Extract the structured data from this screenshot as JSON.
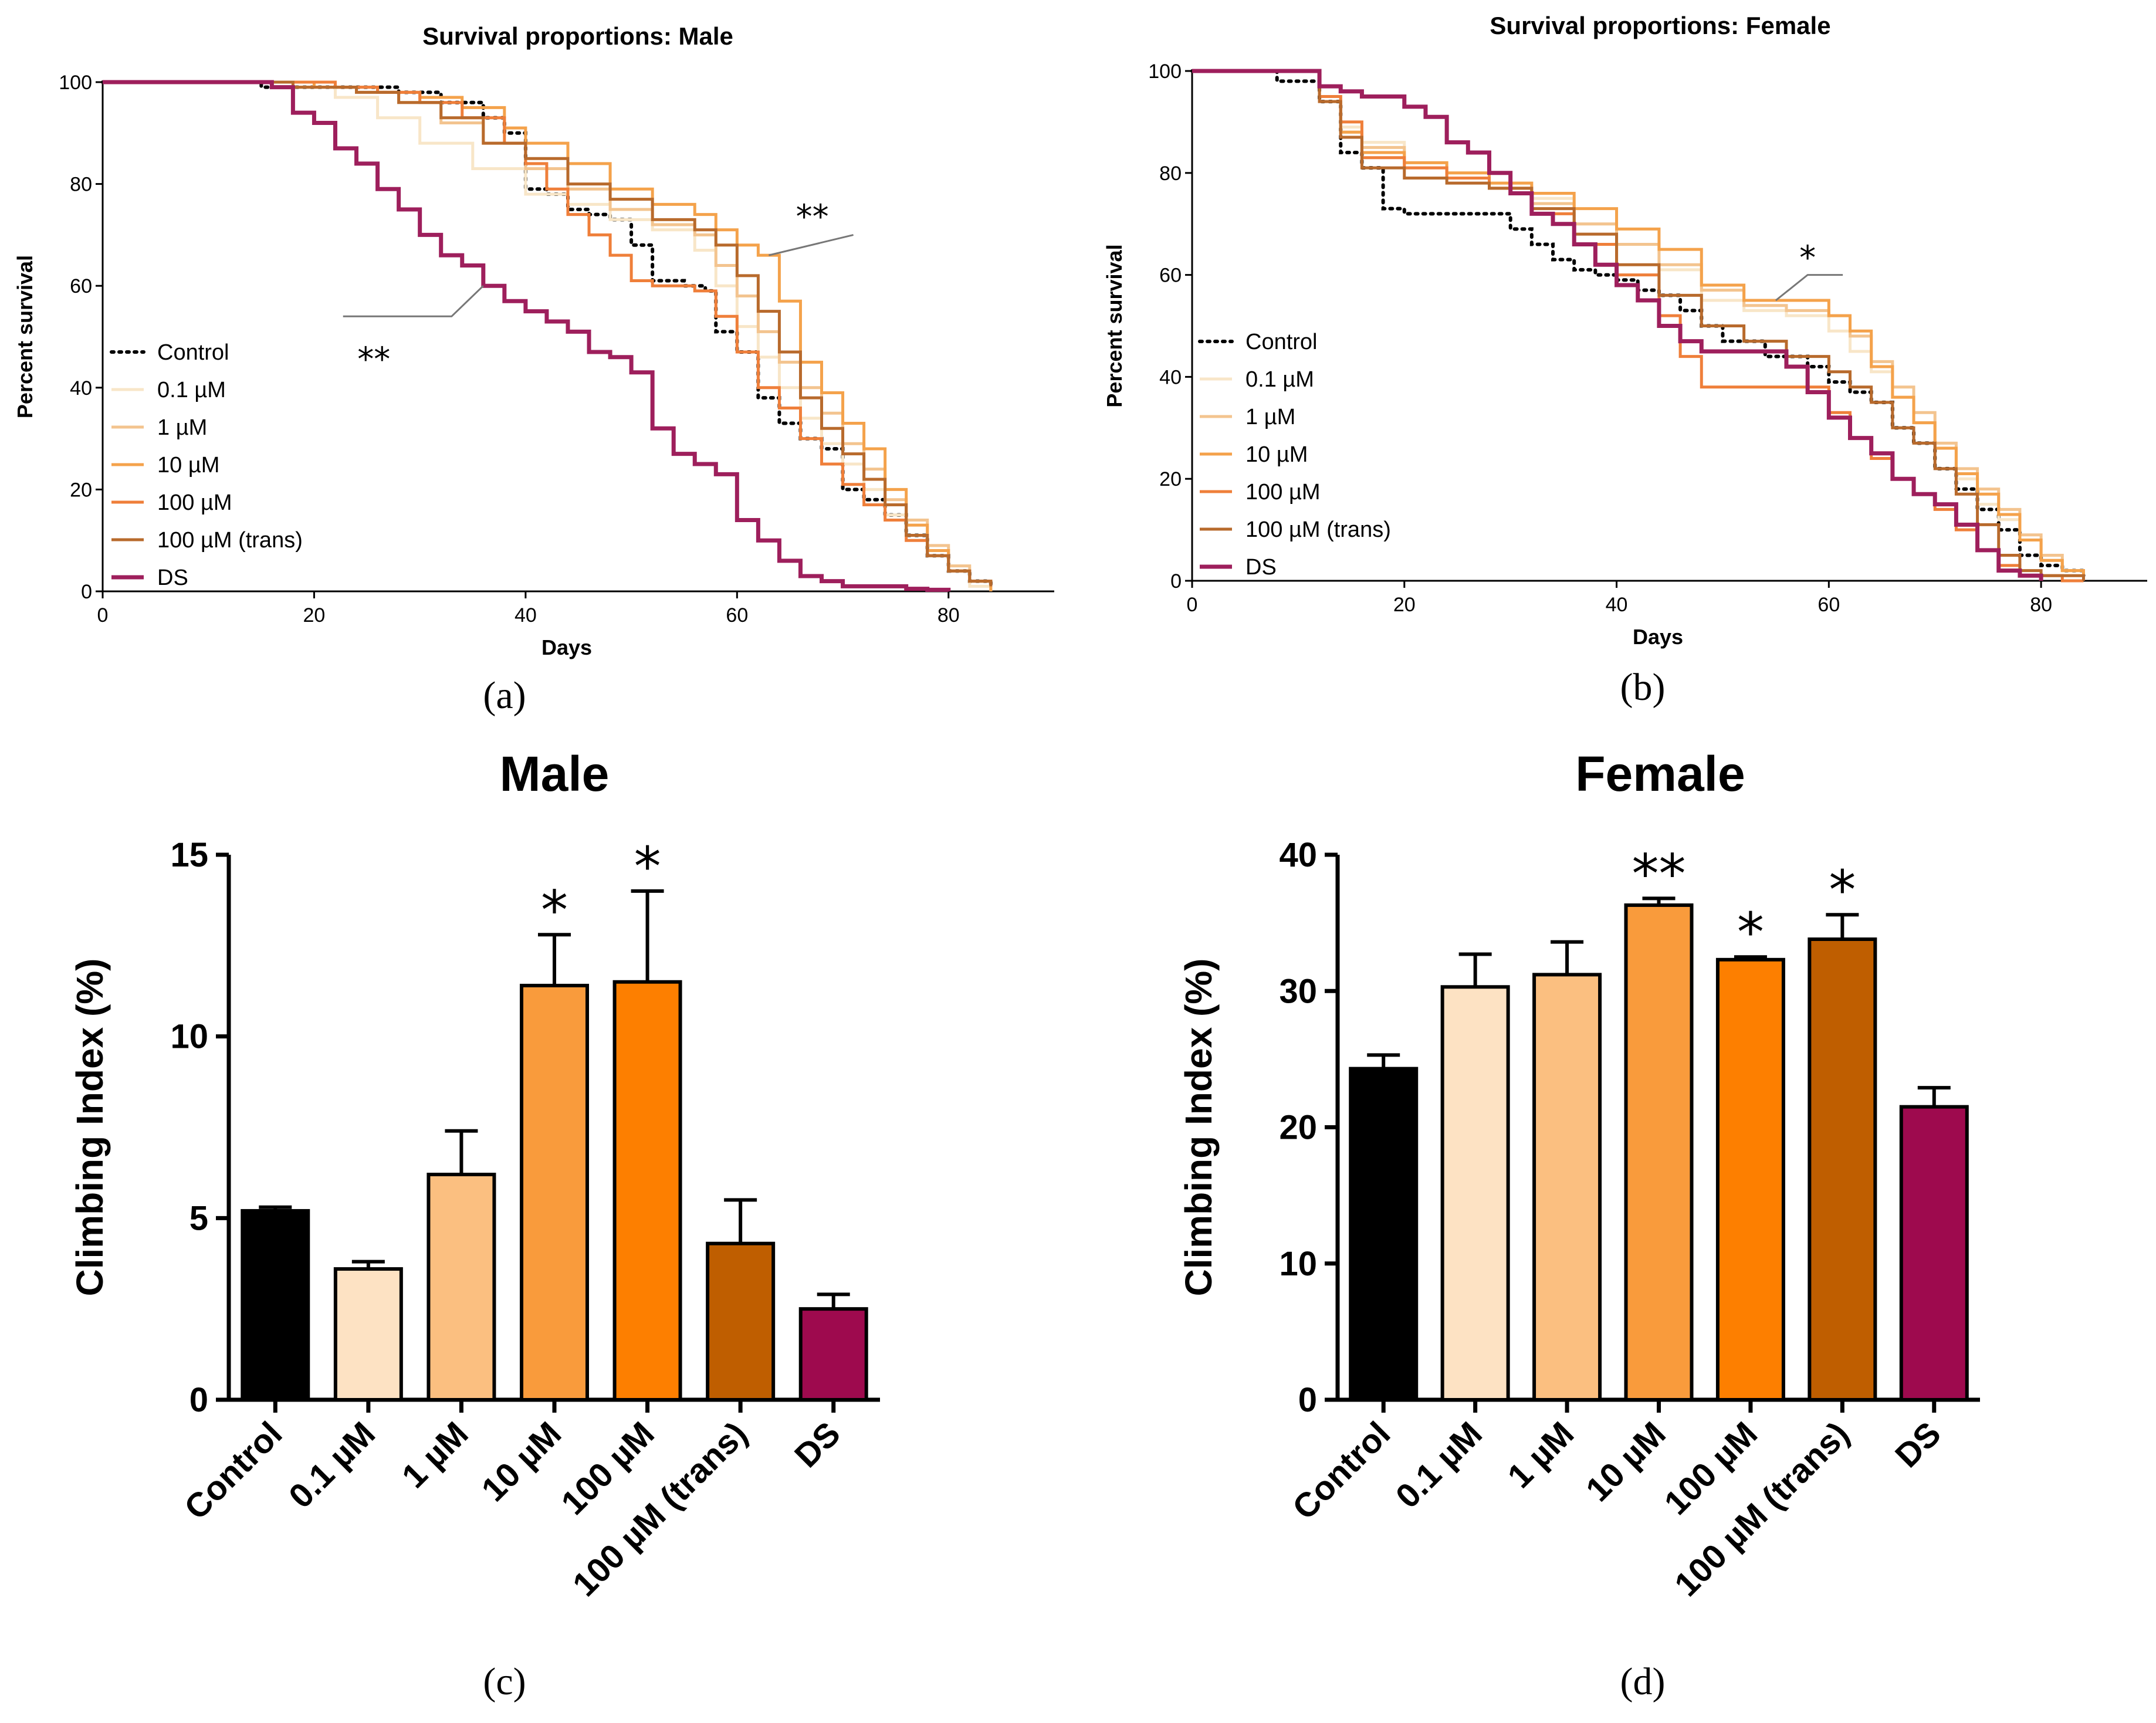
{
  "chart_data": [
    {
      "id": "a",
      "type": "line",
      "panel_label": "(a)",
      "title": "Survival proportions: Male",
      "xlabel": "Days",
      "ylabel": "Percent survival",
      "xlim": [
        0,
        90
      ],
      "ylim": [
        0,
        100
      ],
      "xticks": [
        0,
        20,
        40,
        60,
        80
      ],
      "yticks": [
        0,
        20,
        40,
        60,
        80,
        100
      ],
      "legend_position": "left",
      "annotations": [
        {
          "text": "**",
          "target": "10 µM"
        },
        {
          "text": "**",
          "target": "DS"
        }
      ],
      "series": [
        {
          "name": "Control",
          "color": "#000000",
          "style": "dotted",
          "x": [
            0,
            15,
            20,
            25,
            28,
            32,
            36,
            38,
            40,
            42,
            44,
            46,
            48,
            50,
            52,
            55,
            57,
            58,
            60,
            62,
            64,
            66,
            68,
            70,
            72,
            74,
            76,
            78,
            80,
            82,
            84
          ],
          "y": [
            100,
            99,
            99,
            99,
            98,
            96,
            93,
            90,
            79,
            78,
            75,
            74,
            73,
            68,
            61,
            60,
            59,
            51,
            47,
            38,
            33,
            30,
            28,
            20,
            18,
            15,
            11,
            7,
            4,
            2,
            1
          ]
        },
        {
          "name": "0.1 µM",
          "color": "#f8e6c8",
          "style": "solid",
          "x": [
            0,
            16,
            22,
            26,
            30,
            35,
            40,
            44,
            48,
            52,
            56,
            58,
            60,
            62,
            64,
            66,
            68,
            70,
            72,
            74,
            76,
            78,
            80,
            82,
            84
          ],
          "y": [
            100,
            99,
            97,
            93,
            88,
            83,
            78,
            76,
            73,
            71,
            67,
            60,
            52,
            46,
            40,
            34,
            29,
            25,
            20,
            15,
            11,
            7,
            4,
            1,
            0
          ]
        },
        {
          "name": "1 µM",
          "color": "#f3c48f",
          "style": "solid",
          "x": [
            0,
            16,
            24,
            28,
            32,
            36,
            40,
            44,
            48,
            52,
            56,
            58,
            60,
            62,
            64,
            66,
            68,
            70,
            72,
            74,
            76,
            78,
            80,
            82,
            84
          ],
          "y": [
            100,
            99,
            98,
            96,
            92,
            88,
            83,
            79,
            75,
            72,
            70,
            64,
            58,
            51,
            45,
            40,
            35,
            29,
            24,
            18,
            14,
            9,
            5,
            2,
            1
          ]
        },
        {
          "name": "10 µM",
          "color": "#f4a24b",
          "style": "solid",
          "x": [
            0,
            20,
            26,
            30,
            34,
            38,
            40,
            44,
            48,
            52,
            56,
            58,
            60,
            62,
            64,
            66,
            68,
            70,
            72,
            74,
            76,
            78,
            80,
            82,
            84
          ],
          "y": [
            100,
            99,
            98,
            97,
            95,
            91,
            88,
            84,
            79,
            76,
            74,
            71,
            68,
            66,
            57,
            45,
            39,
            33,
            28,
            20,
            13,
            8,
            4,
            2,
            0
          ]
        },
        {
          "name": "100 µM",
          "color": "#ef7f3a",
          "style": "solid",
          "x": [
            0,
            22,
            26,
            30,
            34,
            38,
            40,
            42,
            44,
            46,
            48,
            50,
            52,
            56,
            58,
            60,
            62,
            64,
            66,
            68,
            70,
            72,
            74,
            76,
            78,
            80,
            82,
            84
          ],
          "y": [
            100,
            99,
            98,
            96,
            93,
            88,
            84,
            79,
            74,
            70,
            66,
            61,
            60,
            59,
            54,
            47,
            40,
            36,
            30,
            25,
            21,
            17,
            14,
            10,
            7,
            4,
            2,
            1
          ]
        },
        {
          "name": "100 µM (trans)",
          "color": "#b86a2c",
          "style": "solid",
          "x": [
            0,
            18,
            24,
            28,
            32,
            36,
            40,
            44,
            48,
            52,
            56,
            58,
            60,
            62,
            64,
            66,
            68,
            70,
            72,
            74,
            76,
            78,
            80,
            82,
            84
          ],
          "y": [
            100,
            99,
            98,
            96,
            93,
            88,
            85,
            80,
            77,
            73,
            71,
            68,
            62,
            55,
            47,
            38,
            32,
            27,
            22,
            17,
            11,
            7,
            4,
            2,
            1
          ]
        },
        {
          "name": "DS",
          "color": "#9e1f5c",
          "style": "solid",
          "x": [
            0,
            16,
            18,
            20,
            22,
            24,
            26,
            28,
            30,
            32,
            34,
            36,
            38,
            40,
            42,
            44,
            46,
            48,
            50,
            52,
            54,
            56,
            58,
            60,
            62,
            64,
            66,
            68,
            70,
            72,
            74,
            76,
            78,
            80
          ],
          "y": [
            100,
            99,
            94,
            92,
            87,
            84,
            79,
            75,
            70,
            66,
            64,
            60,
            57,
            55,
            53,
            51,
            47,
            46,
            43,
            32,
            27,
            25,
            23,
            14,
            10,
            6,
            3,
            2,
            1,
            1,
            1,
            0.5,
            0.3,
            0
          ]
        }
      ]
    },
    {
      "id": "b",
      "type": "line",
      "panel_label": "(b)",
      "title": "Survival proportions: Female",
      "xlabel": "Days",
      "ylabel": "Percent survival",
      "xlim": [
        0,
        90
      ],
      "ylim": [
        0,
        100
      ],
      "xticks": [
        0,
        20,
        40,
        60,
        80
      ],
      "yticks": [
        0,
        20,
        40,
        60,
        80,
        100
      ],
      "legend_position": "left",
      "annotations": [
        {
          "text": "*",
          "target": "10 µM"
        }
      ],
      "series": [
        {
          "name": "Control",
          "color": "#000000",
          "style": "dotted",
          "x": [
            0,
            8,
            12,
            14,
            16,
            18,
            20,
            24,
            28,
            30,
            32,
            34,
            36,
            38,
            40,
            42,
            44,
            46,
            48,
            50,
            54,
            58,
            60,
            62,
            64,
            66,
            68,
            70,
            72,
            74,
            76,
            78,
            80,
            82,
            84
          ],
          "y": [
            100,
            98,
            94,
            84,
            81,
            73,
            72,
            72,
            72,
            69,
            66,
            63,
            61,
            60,
            59,
            57,
            56,
            53,
            50,
            47,
            44,
            42,
            39,
            37,
            35,
            30,
            27,
            22,
            18,
            14,
            10,
            5,
            3,
            2,
            1
          ]
        },
        {
          "name": "0.1 µM",
          "color": "#f8e6c8",
          "style": "solid",
          "x": [
            0,
            12,
            14,
            16,
            20,
            24,
            28,
            32,
            36,
            40,
            44,
            48,
            52,
            56,
            60,
            62,
            64,
            66,
            68,
            70,
            72,
            74,
            76,
            78,
            80,
            82,
            84
          ],
          "y": [
            100,
            95,
            89,
            86,
            82,
            80,
            78,
            75,
            70,
            66,
            61,
            55,
            53,
            52,
            49,
            45,
            41,
            36,
            31,
            26,
            20,
            15,
            12,
            8,
            4,
            2,
            1
          ]
        },
        {
          "name": "1 µM",
          "color": "#f3c48f",
          "style": "solid",
          "x": [
            0,
            12,
            14,
            16,
            20,
            24,
            28,
            32,
            36,
            40,
            44,
            48,
            52,
            56,
            60,
            62,
            64,
            66,
            68,
            70,
            72,
            74,
            76,
            78,
            80,
            82,
            84
          ],
          "y": [
            100,
            94,
            88,
            85,
            81,
            79,
            77,
            74,
            70,
            66,
            62,
            57,
            54,
            53,
            52,
            48,
            43,
            38,
            33,
            27,
            22,
            18,
            14,
            9,
            5,
            2,
            1
          ]
        },
        {
          "name": "10 µM",
          "color": "#f4a24b",
          "style": "solid",
          "x": [
            0,
            12,
            14,
            16,
            20,
            24,
            28,
            32,
            36,
            40,
            44,
            48,
            52,
            56,
            60,
            62,
            64,
            66,
            68,
            70,
            72,
            74,
            76,
            78,
            80,
            82,
            84
          ],
          "y": [
            100,
            95,
            88,
            84,
            82,
            80,
            78,
            76,
            73,
            69,
            65,
            58,
            55,
            55,
            52,
            49,
            42,
            36,
            31,
            26,
            21,
            17,
            13,
            8,
            4,
            2,
            1
          ]
        },
        {
          "name": "100 µM",
          "color": "#ef7f3a",
          "style": "solid",
          "x": [
            0,
            12,
            14,
            16,
            20,
            24,
            28,
            32,
            36,
            40,
            44,
            46,
            48,
            52,
            56,
            60,
            62,
            64,
            66,
            68,
            70,
            72,
            74,
            76,
            78,
            80,
            82,
            84
          ],
          "y": [
            100,
            95,
            90,
            83,
            81,
            79,
            77,
            72,
            66,
            60,
            52,
            44,
            38,
            38,
            38,
            33,
            28,
            24,
            20,
            17,
            14,
            10,
            6,
            3,
            1,
            1,
            0,
            0
          ]
        },
        {
          "name": "100 µM (trans)",
          "color": "#b86a2c",
          "style": "solid",
          "x": [
            0,
            12,
            14,
            16,
            20,
            24,
            28,
            32,
            36,
            40,
            44,
            48,
            52,
            56,
            60,
            62,
            64,
            66,
            68,
            70,
            72,
            74,
            76,
            78,
            80,
            82,
            84
          ],
          "y": [
            100,
            94,
            87,
            81,
            79,
            78,
            77,
            73,
            68,
            62,
            56,
            50,
            47,
            44,
            41,
            38,
            35,
            30,
            27,
            22,
            17,
            11,
            5,
            2,
            1,
            1,
            0
          ]
        },
        {
          "name": "DS",
          "color": "#9e1f5c",
          "style": "solid",
          "x": [
            0,
            12,
            14,
            16,
            20,
            22,
            24,
            26,
            28,
            30,
            32,
            34,
            36,
            38,
            40,
            42,
            44,
            46,
            48,
            50,
            52,
            56,
            58,
            60,
            62,
            64,
            66,
            68,
            70,
            72,
            74,
            76,
            78,
            80
          ],
          "y": [
            100,
            97,
            96,
            95,
            93,
            91,
            86,
            84,
            80,
            76,
            72,
            70,
            66,
            62,
            58,
            55,
            50,
            47,
            45,
            45,
            45,
            42,
            37,
            32,
            28,
            25,
            20,
            17,
            15,
            11,
            6,
            2,
            1,
            0
          ]
        }
      ]
    },
    {
      "id": "c",
      "type": "bar",
      "panel_label": "(c)",
      "title": "Male",
      "ylabel": "Climbing Index  (%)",
      "ylim": [
        0,
        15
      ],
      "yticks": [
        0,
        5,
        10,
        15
      ],
      "categories": [
        "Control",
        "0.1 µM",
        "1 µM",
        "10 µM",
        "100 µM",
        "100 µM (trans)",
        "DS"
      ],
      "values": [
        5.2,
        3.6,
        6.2,
        11.4,
        11.5,
        4.3,
        2.5
      ],
      "errors": [
        0.1,
        0.2,
        1.2,
        1.4,
        2.5,
        1.2,
        0.4
      ],
      "significance": [
        "",
        "",
        "",
        "*",
        "*",
        "",
        ""
      ],
      "colors": [
        "#000000",
        "#fde2c3",
        "#fbbf80",
        "#f99b3c",
        "#fd7f00",
        "#bf5e00",
        "#9e0a4e"
      ]
    },
    {
      "id": "d",
      "type": "bar",
      "panel_label": "(d)",
      "title": "Female",
      "ylabel": "Climbing Index  (%)",
      "ylim": [
        0,
        40
      ],
      "yticks": [
        0,
        10,
        20,
        30,
        40
      ],
      "categories": [
        "Control",
        "0.1 µM",
        "1 µM",
        "10 µM",
        "100 µM",
        "100 µM (trans)",
        "DS"
      ],
      "values": [
        24.3,
        30.3,
        31.2,
        36.3,
        32.3,
        33.8,
        21.5
      ],
      "errors": [
        1.0,
        2.4,
        2.4,
        0.5,
        0.2,
        1.8,
        1.4
      ],
      "significance": [
        "",
        "",
        "",
        "**",
        "*",
        "*",
        ""
      ],
      "colors": [
        "#000000",
        "#fde2c3",
        "#fbbf80",
        "#f99b3c",
        "#fd7f00",
        "#bf5e00",
        "#9e0a4e"
      ]
    }
  ]
}
